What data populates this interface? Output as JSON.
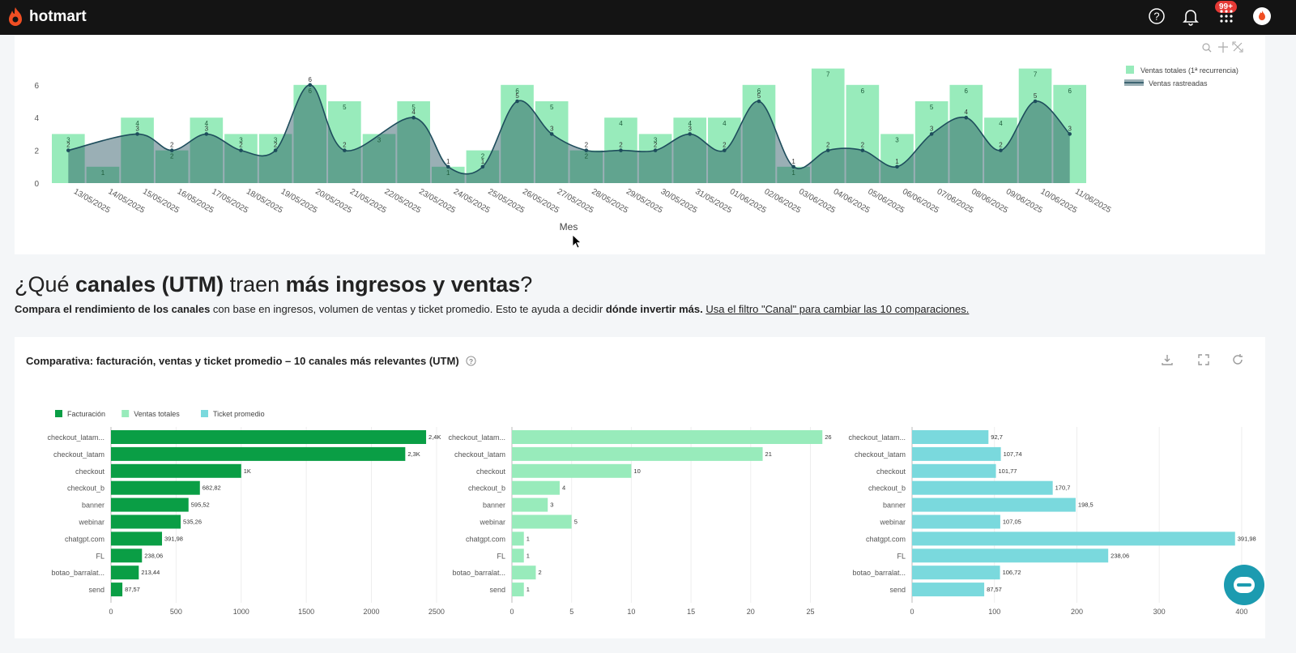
{
  "app": {
    "brand": "hotmart",
    "notifications_badge": "99+"
  },
  "colors": {
    "topbar": "#141414",
    "accent": "#f04e23",
    "green_dark": "#0a9e45",
    "green_light": "#98ebbb",
    "teal": "#7ad9dd",
    "line": "#1e4d5c"
  },
  "topbar_icons": [
    "help-icon",
    "bell-icon",
    "apps-grid-icon",
    "user-avatar-icon"
  ],
  "section": {
    "heading_parts": [
      {
        "text": "¿Qué ",
        "bold": false
      },
      {
        "text": "canales (UTM)",
        "bold": true
      },
      {
        "text": " traen ",
        "bold": false
      },
      {
        "text": "más ingresos y ventas",
        "bold": true
      },
      {
        "text": "?",
        "bold": false
      }
    ],
    "sub_bold1": "Compara el rendimiento de los canales",
    "sub_text1": " con base en ingresos, volumen de ventas y ticket promedio. Esto te ayuda a decidir ",
    "sub_bold2": "dónde invertir más.",
    "sub_link": "Usa el filtro \"Canal\" para cambiar las 10 comparaciones."
  },
  "comparison_card": {
    "title": "Comparativa: facturación, ventas y ticket promedio – 10 canales más relevantes (UTM)",
    "tool_icons": [
      "download-icon",
      "fullscreen-icon",
      "refresh-icon"
    ]
  },
  "chart_data": [
    {
      "type": "bar",
      "xlabel": "Mes",
      "ylabel": "",
      "ylim": [
        0,
        7
      ],
      "y_ticks": [
        0,
        2,
        4,
        6
      ],
      "legend_placement": "top-right",
      "categories": [
        "13/05/2025",
        "14/05/2025",
        "15/05/2025",
        "16/05/2025",
        "17/05/2025",
        "18/05/2025",
        "19/05/2025",
        "20/05/2025",
        "21/05/2025",
        "22/05/2025",
        "23/05/2025",
        "24/05/2025",
        "25/05/2025",
        "26/05/2025",
        "27/05/2025",
        "28/05/2025",
        "29/05/2025",
        "30/05/2025",
        "31/05/2025",
        "01/06/2025",
        "02/06/2025",
        "03/06/2025",
        "04/06/2025",
        "05/06/2025",
        "06/06/2025",
        "07/06/2025",
        "08/06/2025",
        "09/06/2025",
        "10/06/2025",
        "11/06/2025"
      ],
      "series": [
        {
          "name": "Ventas totales (1ª recurrencia)",
          "type": "bar",
          "color": "#98ebbb",
          "values": [
            3,
            1,
            4,
            2,
            4,
            3,
            3,
            6,
            5,
            3,
            5,
            1,
            2,
            6,
            5,
            2,
            4,
            3,
            4,
            4,
            6,
            1,
            7,
            6,
            3,
            5,
            6,
            4,
            7,
            6
          ]
        },
        {
          "name": "Ventas rastreadas",
          "type": "line",
          "color": "#1e4d5c",
          "values": [
            2,
            null,
            3,
            2,
            3,
            2,
            2,
            6,
            2,
            null,
            4,
            1,
            1,
            5,
            3,
            2,
            2,
            2,
            3,
            2,
            5,
            1,
            2,
            2,
            1,
            3,
            4,
            2,
            5,
            3
          ]
        }
      ],
      "tool_icons": [
        "zoom-icon",
        "pan-icon",
        "reset-icon"
      ]
    },
    {
      "type": "bar",
      "orientation": "horizontal",
      "legend": [
        "Facturación",
        "Ventas totales",
        "Ticket promedio"
      ],
      "legend_colors": [
        "#0a9e45",
        "#98ebbb",
        "#7ad9dd"
      ],
      "legend_placement": "top-left",
      "categories": [
        "checkout_latam...",
        "checkout_latam",
        "checkout",
        "checkout_b",
        "banner",
        "webinar",
        "chatgpt.com",
        "FL",
        "botao_barralat...",
        "send"
      ],
      "panels": [
        {
          "name": "Facturación",
          "color": "#0a9e45",
          "xlim": [
            0,
            2600
          ],
          "x_ticks": [
            0,
            500,
            1000,
            1500,
            2000,
            2500
          ],
          "values": [
            2420,
            2260,
            1000,
            682.82,
            595.52,
            535.26,
            391.98,
            238.06,
            213.44,
            87.57
          ],
          "labels": [
            "2,4K",
            "2,3K",
            "1K",
            "682,82",
            "595,52",
            "535,26",
            "391,98",
            "238,06",
            "213,44",
            "87,57"
          ]
        },
        {
          "name": "Ventas totales",
          "color": "#98ebbb",
          "xlim": [
            0,
            27
          ],
          "x_ticks": [
            0,
            5,
            10,
            15,
            20,
            25
          ],
          "values": [
            26,
            21,
            10,
            4,
            3,
            5,
            1,
            1,
            2,
            1
          ],
          "labels": [
            "26",
            "21",
            "10",
            "4",
            "3",
            "5",
            "1",
            "1",
            "2",
            "1"
          ]
        },
        {
          "name": "Ticket promedio",
          "color": "#7ad9dd",
          "xlim": [
            0,
            405
          ],
          "x_ticks": [
            0,
            100,
            200,
            300,
            400
          ],
          "values": [
            92.7,
            107.74,
            101.77,
            170.7,
            198.5,
            107.05,
            391.98,
            238.06,
            106.72,
            87.57
          ],
          "labels": [
            "92,7",
            "107,74",
            "101,77",
            "170,7",
            "198,5",
            "107,05",
            "391,98",
            "238,06",
            "106,72",
            "87,57"
          ]
        }
      ]
    }
  ]
}
